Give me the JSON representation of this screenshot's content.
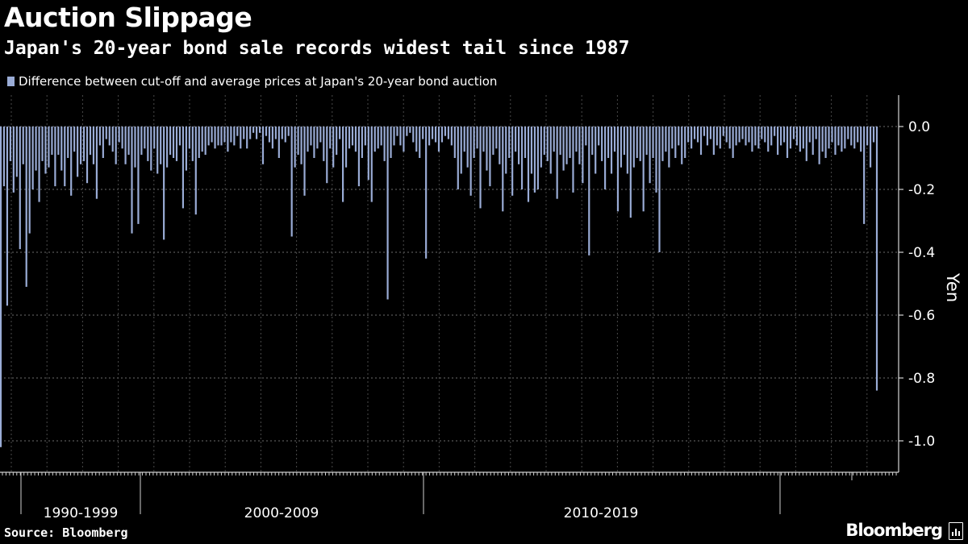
{
  "header": {
    "title": "Auction Slippage",
    "subtitle": "Japan's 20-year bond sale records widest tail since 1987"
  },
  "legend": {
    "label": "Difference between cut-off and average prices at Japan's 20-year bond auction",
    "color": "#9aacd6"
  },
  "footer": {
    "source": "Source: Bloomberg",
    "brand": "Bloomberg"
  },
  "chart_data": {
    "type": "bar",
    "ylabel": "Yen",
    "ylim": [
      -1.1,
      0.1
    ],
    "yticks": [
      0.0,
      -0.2,
      -0.4,
      -0.6,
      -0.8,
      -1.0
    ],
    "ytick_labels": [
      "0.0",
      "-0.2",
      "-0.4",
      "-0.6",
      "-0.8",
      "-1.0"
    ],
    "grid": true,
    "axis_position": "right",
    "bar_color": "#9aacd6",
    "decade_labels": [
      "1990-1999",
      "2000-2009",
      "2010-2019"
    ],
    "series": [
      {
        "values": [
          -1.02,
          -0.19,
          -0.57,
          -0.11,
          -0.21,
          -0.16,
          -0.39,
          -0.12,
          -0.51,
          -0.34,
          -0.2,
          -0.14,
          -0.24,
          -0.11,
          -0.15,
          -0.13,
          -0.09,
          -0.19,
          -0.09,
          -0.14,
          -0.19,
          -0.1,
          -0.22,
          -0.08,
          -0.16,
          -0.12,
          -0.11,
          -0.18,
          -0.09,
          -0.12,
          -0.23,
          -0.06,
          -0.1,
          -0.04,
          -0.06,
          -0.08,
          -0.12,
          -0.05,
          -0.07,
          -0.12,
          -0.09,
          -0.34,
          -0.13,
          -0.31,
          -0.09,
          -0.07,
          -0.11,
          -0.14,
          -0.07,
          -0.15,
          -0.12,
          -0.36,
          -0.13,
          -0.09,
          -0.1,
          -0.11,
          -0.06,
          -0.26,
          -0.14,
          -0.07,
          -0.11,
          -0.28,
          -0.1,
          -0.08,
          -0.09,
          -0.06,
          -0.05,
          -0.07,
          -0.06,
          -0.06,
          -0.05,
          -0.08,
          -0.05,
          -0.06,
          -0.03,
          -0.07,
          -0.04,
          -0.07,
          -0.04,
          -0.02,
          -0.04,
          -0.02,
          -0.12,
          -0.03,
          -0.05,
          -0.07,
          -0.04,
          -0.1,
          -0.04,
          -0.05,
          -0.03,
          -0.35,
          -0.13,
          -0.09,
          -0.12,
          -0.22,
          -0.08,
          -0.06,
          -0.1,
          -0.07,
          -0.05,
          -0.11,
          -0.18,
          -0.07,
          -0.13,
          -0.09,
          -0.04,
          -0.24,
          -0.13,
          -0.07,
          -0.06,
          -0.08,
          -0.19,
          -0.1,
          -0.06,
          -0.17,
          -0.24,
          -0.08,
          -0.07,
          -0.06,
          -0.11,
          -0.55,
          -0.1,
          -0.06,
          -0.03,
          -0.06,
          -0.08,
          -0.03,
          -0.02,
          -0.05,
          -0.08,
          -0.1,
          -0.04,
          -0.42,
          -0.06,
          -0.04,
          -0.05,
          -0.08,
          -0.05,
          -0.03,
          -0.04,
          -0.06,
          -0.1,
          -0.2,
          -0.15,
          -0.08,
          -0.13,
          -0.22,
          -0.1,
          -0.07,
          -0.26,
          -0.08,
          -0.14,
          -0.19,
          -0.09,
          -0.07,
          -0.12,
          -0.27,
          -0.15,
          -0.1,
          -0.22,
          -0.08,
          -0.12,
          -0.2,
          -0.1,
          -0.24,
          -0.15,
          -0.21,
          -0.2,
          -0.13,
          -0.09,
          -0.11,
          -0.15,
          -0.08,
          -0.23,
          -0.09,
          -0.14,
          -0.12,
          -0.1,
          -0.21,
          -0.08,
          -0.12,
          -0.18,
          -0.06,
          -0.41,
          -0.09,
          -0.15,
          -0.06,
          -0.11,
          -0.2,
          -0.1,
          -0.15,
          -0.08,
          -0.27,
          -0.13,
          -0.09,
          -0.15,
          -0.29,
          -0.13,
          -0.1,
          -0.11,
          -0.27,
          -0.09,
          -0.18,
          -0.1,
          -0.21,
          -0.4,
          -0.11,
          -0.08,
          -0.13,
          -0.07,
          -0.1,
          -0.06,
          -0.12,
          -0.1,
          -0.05,
          -0.07,
          -0.04,
          -0.05,
          -0.09,
          -0.03,
          -0.06,
          -0.04,
          -0.09,
          -0.06,
          -0.07,
          -0.03,
          -0.05,
          -0.07,
          -0.1,
          -0.06,
          -0.05,
          -0.04,
          -0.06,
          -0.05,
          -0.08,
          -0.06,
          -0.07,
          -0.04,
          -0.05,
          -0.08,
          -0.06,
          -0.03,
          -0.09,
          -0.06,
          -0.05,
          -0.1,
          -0.07,
          -0.04,
          -0.06,
          -0.08,
          -0.07,
          -0.11,
          -0.05,
          -0.09,
          -0.04,
          -0.12,
          -0.08,
          -0.1,
          -0.07,
          -0.05,
          -0.09,
          -0.06,
          -0.08,
          -0.07,
          -0.04,
          -0.06,
          -0.07,
          -0.05,
          -0.08,
          -0.31,
          -0.06,
          -0.13,
          -0.05,
          -0.84
        ]
      }
    ]
  }
}
